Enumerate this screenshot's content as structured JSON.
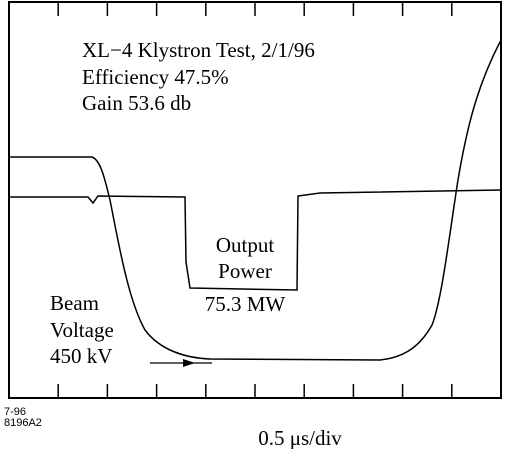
{
  "title": {
    "lines": [
      "XL−4 Klystron Test, 2/1/96",
      "Efficiency 47.5%",
      "Gain 53.6 db"
    ]
  },
  "annotations": {
    "output_power": [
      "Output",
      "Power"
    ],
    "output_value": "75.3 MW",
    "beam_voltage": [
      "Beam",
      "Voltage",
      "450 kV"
    ]
  },
  "figure_id": [
    "7-96",
    "8196A2"
  ],
  "x_axis_label": "0.5 μs/div"
}
